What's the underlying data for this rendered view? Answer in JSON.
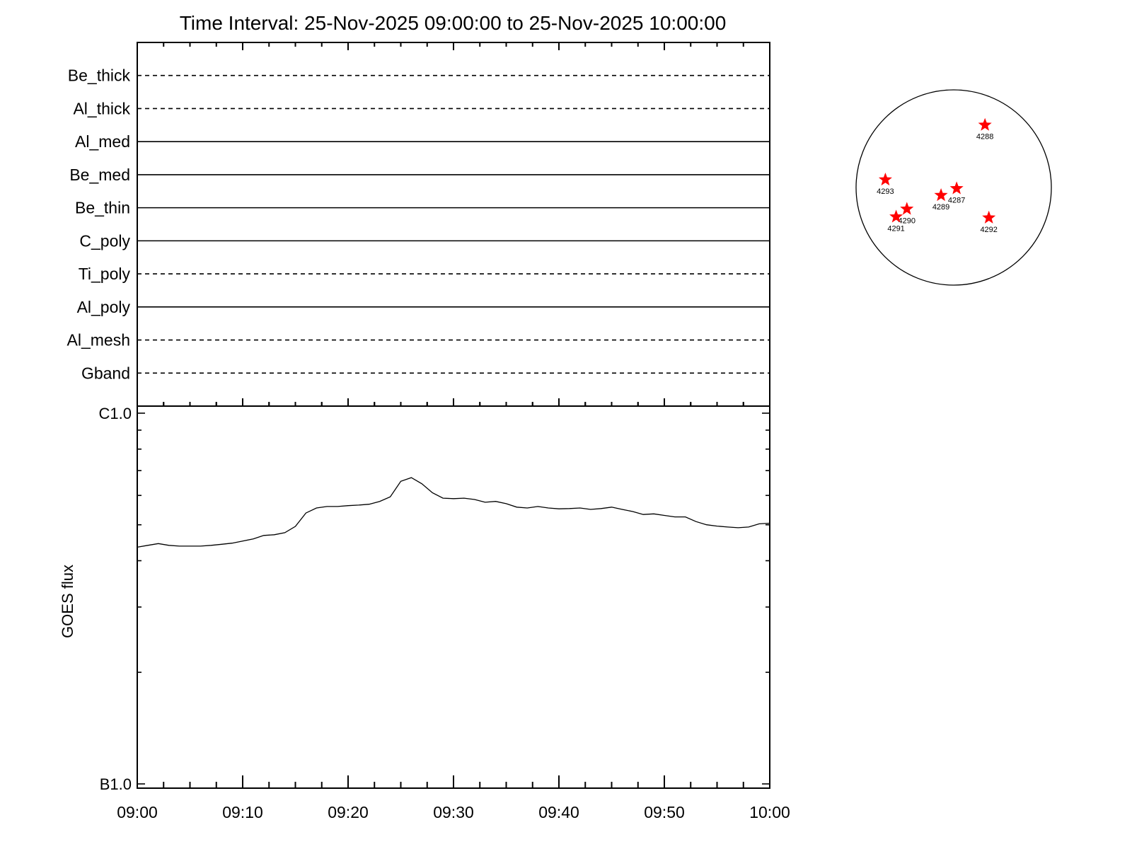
{
  "chart_data": [
    {
      "type": "table",
      "title": "Time Interval: 25-Nov-2025 09:00:00 to 25-Nov-2025 10:00:00",
      "rows": [
        {
          "label": "Be_thick",
          "style": "dashed"
        },
        {
          "label": "Al_thick",
          "style": "dashed"
        },
        {
          "label": "Al_med",
          "style": "solid"
        },
        {
          "label": "Be_med",
          "style": "solid"
        },
        {
          "label": "Be_thin",
          "style": "solid"
        },
        {
          "label": "C_poly",
          "style": "solid"
        },
        {
          "label": "Ti_poly",
          "style": "dashed"
        },
        {
          "label": "Al_poly",
          "style": "solid"
        },
        {
          "label": "Al_mesh",
          "style": "dashed"
        },
        {
          "label": "Gband",
          "style": "dashed"
        }
      ],
      "xlim": [
        "09:00",
        "10:00"
      ]
    },
    {
      "type": "line",
      "ylabel": "GOES flux",
      "y_scale": "log",
      "ylim": [
        1e-07,
        1e-06
      ],
      "y_tick_labels": [
        "B1.0",
        "C1.0"
      ],
      "x_tick_labels": [
        "09:00",
        "09:10",
        "09:20",
        "09:30",
        "09:40",
        "09:50",
        "10:00"
      ],
      "xlim": [
        "09:00",
        "10:00"
      ],
      "series": [
        {
          "x": [
            "09:00",
            "09:01",
            "09:02",
            "09:03",
            "09:04",
            "09:05",
            "09:06",
            "09:07",
            "09:08",
            "09:09",
            "09:10",
            "09:11",
            "09:12",
            "09:13",
            "09:14",
            "09:15",
            "09:16",
            "09:17",
            "09:18",
            "09:19",
            "09:20",
            "09:21",
            "09:22",
            "09:23",
            "09:24",
            "09:25",
            "09:26",
            "09:27",
            "09:28",
            "09:29",
            "09:30",
            "09:31",
            "09:32",
            "09:33",
            "09:34",
            "09:35",
            "09:36",
            "09:37",
            "09:38",
            "09:39",
            "09:40",
            "09:41",
            "09:42",
            "09:43",
            "09:44",
            "09:45",
            "09:46",
            "09:47",
            "09:48",
            "09:49",
            "09:50",
            "09:51",
            "09:52",
            "09:53",
            "09:54",
            "09:55",
            "09:56",
            "09:57",
            "09:58",
            "09:59",
            "10:00"
          ],
          "y": [
            4.35e-07,
            4.4e-07,
            4.45e-07,
            4.4e-07,
            4.38e-07,
            4.38e-07,
            4.38e-07,
            4.4e-07,
            4.43e-07,
            4.46e-07,
            4.52e-07,
            4.58e-07,
            4.68e-07,
            4.7e-07,
            4.76e-07,
            4.95e-07,
            5.38e-07,
            5.55e-07,
            5.6e-07,
            5.6e-07,
            5.63e-07,
            5.65e-07,
            5.68e-07,
            5.78e-07,
            5.95e-07,
            6.55e-07,
            6.7e-07,
            6.45e-07,
            6.1e-07,
            5.9e-07,
            5.88e-07,
            5.9e-07,
            5.85e-07,
            5.75e-07,
            5.78e-07,
            5.7e-07,
            5.58e-07,
            5.55e-07,
            5.6e-07,
            5.55e-07,
            5.52e-07,
            5.53e-07,
            5.55e-07,
            5.5e-07,
            5.53e-07,
            5.58e-07,
            5.5e-07,
            5.43e-07,
            5.33e-07,
            5.35e-07,
            5.3e-07,
            5.25e-07,
            5.25e-07,
            5.1e-07,
            5e-07,
            4.96e-07,
            4.93e-07,
            4.91e-07,
            4.93e-07,
            5.03e-07,
            5.05e-07
          ]
        }
      ]
    },
    {
      "type": "scatter",
      "points": [
        {
          "label": "4288",
          "x": 0.32,
          "y": 0.64
        },
        {
          "label": "4293",
          "x": -0.7,
          "y": 0.08
        },
        {
          "label": "4287",
          "x": 0.03,
          "y": -0.01
        },
        {
          "label": "4289",
          "x": -0.13,
          "y": -0.08
        },
        {
          "label": "4290",
          "x": -0.48,
          "y": -0.22
        },
        {
          "label": "4291",
          "x": -0.59,
          "y": -0.3
        },
        {
          "label": "4292",
          "x": 0.36,
          "y": -0.31
        }
      ],
      "marker_color": "#ff0000"
    }
  ]
}
